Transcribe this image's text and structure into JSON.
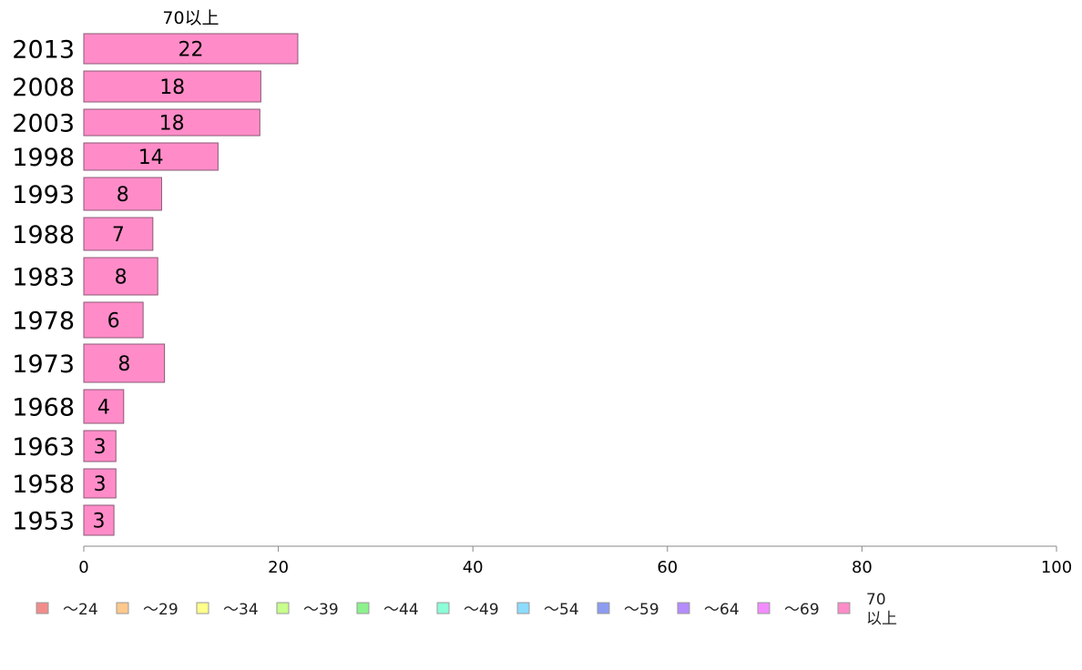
{
  "chart_data": {
    "type": "bar",
    "orientation": "horizontal",
    "stacked": true,
    "title": "",
    "xlabel": "",
    "ylabel": "",
    "xlim": [
      0,
      100
    ],
    "x_ticks": [
      "0",
      "20",
      "40",
      "60",
      "80",
      "100"
    ],
    "categories": [
      "2013",
      "2008",
      "2003",
      "1998",
      "1993",
      "1988",
      "1983",
      "1978",
      "1973",
      "1968",
      "1963",
      "1958",
      "1953"
    ],
    "series": [
      {
        "name": "～24",
        "color": "#f28c8c",
        "values": [
          0,
          0,
          0,
          0,
          0,
          0,
          0,
          0,
          0,
          0,
          0,
          0,
          0
        ]
      },
      {
        "name": "～29",
        "color": "#ffc88c",
        "values": [
          0,
          0,
          0,
          0,
          0,
          0,
          0,
          0,
          0,
          0,
          0,
          0,
          0
        ]
      },
      {
        "name": "～34",
        "color": "#ffff8c",
        "values": [
          0,
          0,
          0,
          0,
          0,
          0,
          0,
          0,
          0,
          0,
          0,
          0,
          0
        ]
      },
      {
        "name": "～39",
        "color": "#c8ff8c",
        "values": [
          0,
          0,
          0,
          0,
          0,
          0,
          0,
          0,
          0,
          0,
          0,
          0,
          0
        ]
      },
      {
        "name": "～44",
        "color": "#8cf28c",
        "values": [
          0,
          0,
          0,
          0,
          0,
          0,
          0,
          0,
          0,
          0,
          0,
          0,
          0
        ]
      },
      {
        "name": "～49",
        "color": "#8cffd6",
        "values": [
          0,
          0,
          0,
          0,
          0,
          0,
          0,
          0,
          0,
          0,
          0,
          0,
          0
        ]
      },
      {
        "name": "～54",
        "color": "#8cdcff",
        "values": [
          0,
          0,
          0,
          0,
          0,
          0,
          0,
          0,
          0,
          0,
          0,
          0,
          0
        ]
      },
      {
        "name": "～59",
        "color": "#8c9cf2",
        "values": [
          0,
          0,
          0,
          0,
          0,
          0,
          0,
          0,
          0,
          0,
          0,
          0,
          0
        ]
      },
      {
        "name": "～64",
        "color": "#b48cff",
        "values": [
          0,
          0,
          0,
          0,
          0,
          0,
          0,
          0,
          0,
          0,
          0,
          0,
          0
        ]
      },
      {
        "name": "～69",
        "color": "#f28cff",
        "values": [
          0,
          0,
          0,
          0,
          0,
          0,
          0,
          0,
          0,
          0,
          0,
          0,
          0
        ]
      },
      {
        "name": "70以上",
        "color": "#ff8cc8",
        "values": [
          22,
          18.2,
          18.1,
          13.8,
          8,
          7.1,
          7.6,
          6.1,
          8.3,
          4.1,
          3.3,
          3.3,
          3.1
        ],
        "labels": [
          "22",
          "18",
          "18",
          "14",
          "8",
          "7",
          "8",
          "6",
          "8",
          "4",
          "3",
          "3",
          "3"
        ]
      }
    ],
    "series_label_top": "70以上",
    "legend": {
      "position": "bottom",
      "entries": [
        "～24",
        "～29",
        "～34",
        "～39",
        "～44",
        "～49",
        "～54",
        "～59",
        "～64",
        "～69",
        "70以上"
      ]
    }
  }
}
